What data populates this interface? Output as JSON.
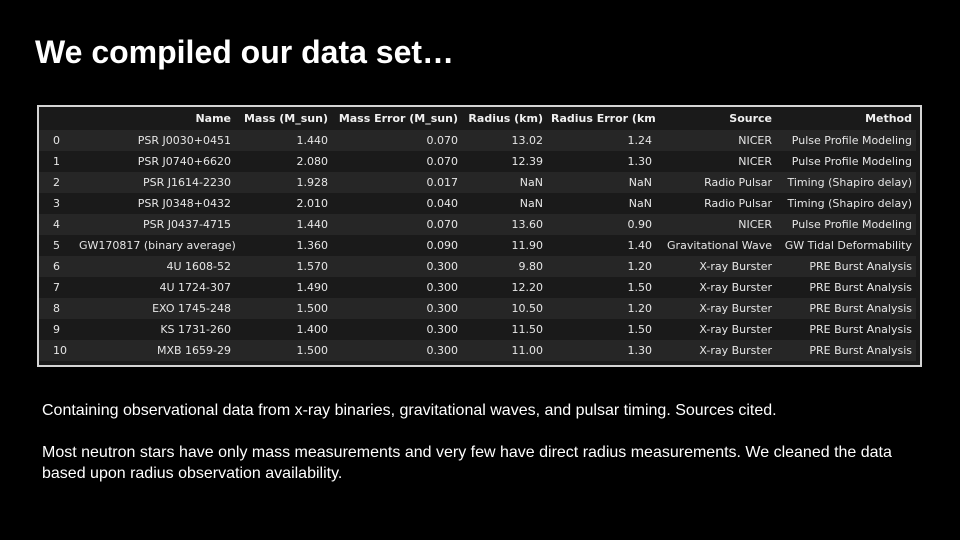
{
  "slide": {
    "title": "We compiled our data set…",
    "paragraph_1": "Containing observational data from x-ray binaries, gravitational waves, and pulsar timing. Sources cited.",
    "paragraph_2": "Most neutron stars have only mass measurements and very few have direct radius measurements. We cleaned the data based upon radius observation availability."
  },
  "table": {
    "index_header": "",
    "headers": [
      "Name",
      "Mass (M_sun)",
      "Mass Error (M_sun)",
      "Radius (km)",
      "Radius Error (km)",
      "Source",
      "Method"
    ],
    "rows": [
      [
        "0",
        "PSR J0030+0451",
        "1.440",
        "0.070",
        "13.02",
        "1.24",
        "NICER",
        "Pulse Profile Modeling"
      ],
      [
        "1",
        "PSR J0740+6620",
        "2.080",
        "0.070",
        "12.39",
        "1.30",
        "NICER",
        "Pulse Profile Modeling"
      ],
      [
        "2",
        "PSR J1614-2230",
        "1.928",
        "0.017",
        "NaN",
        "NaN",
        "Radio Pulsar",
        "Timing (Shapiro delay)"
      ],
      [
        "3",
        "PSR J0348+0432",
        "2.010",
        "0.040",
        "NaN",
        "NaN",
        "Radio Pulsar",
        "Timing (Shapiro delay)"
      ],
      [
        "4",
        "PSR J0437-4715",
        "1.440",
        "0.070",
        "13.60",
        "0.90",
        "NICER",
        "Pulse Profile Modeling"
      ],
      [
        "5",
        "GW170817 (binary average)",
        "1.360",
        "0.090",
        "11.90",
        "1.40",
        "Gravitational Wave",
        "GW Tidal Deformability"
      ],
      [
        "6",
        "4U 1608-52",
        "1.570",
        "0.300",
        "9.80",
        "1.20",
        "X-ray Burster",
        "PRE Burst Analysis"
      ],
      [
        "7",
        "4U 1724-307",
        "1.490",
        "0.300",
        "12.20",
        "1.50",
        "X-ray Burster",
        "PRE Burst Analysis"
      ],
      [
        "8",
        "EXO 1745-248",
        "1.500",
        "0.300",
        "10.50",
        "1.20",
        "X-ray Burster",
        "PRE Burst Analysis"
      ],
      [
        "9",
        "KS 1731-260",
        "1.400",
        "0.300",
        "11.50",
        "1.50",
        "X-ray Burster",
        "PRE Burst Analysis"
      ],
      [
        "10",
        "MXB 1659-29",
        "1.500",
        "0.300",
        "11.00",
        "1.30",
        "X-ray Burster",
        "PRE Burst Analysis"
      ]
    ]
  },
  "colors": {
    "background": "#000000",
    "table_background": "#1a1a1a",
    "table_row_alt": "#262626",
    "table_border": "#d4d4d4",
    "text": "#ffffff"
  }
}
